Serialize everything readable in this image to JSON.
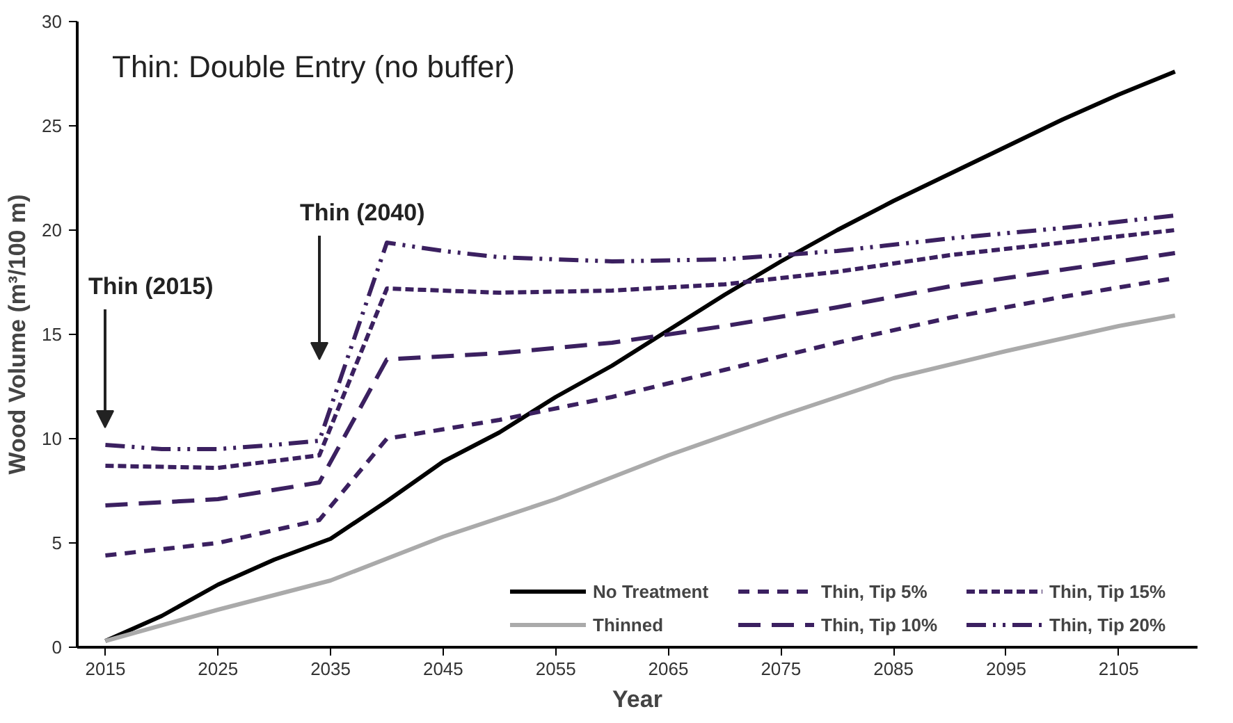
{
  "chart_data": {
    "type": "line",
    "title": "Thin: Double Entry (no buffer)",
    "xlabel": "Year",
    "ylabel": "Wood Volume (m³/100 m)",
    "xlim": [
      2012.5,
      2112
    ],
    "xticks": [
      2015,
      2025,
      2035,
      2045,
      2055,
      2065,
      2075,
      2085,
      2095,
      2105
    ],
    "ylim": [
      0,
      30
    ],
    "yticks": [
      0,
      5,
      10,
      15,
      20,
      25,
      30
    ],
    "grid": false,
    "legend": "bottom right",
    "annotations": [
      "Thin (2015)",
      "Thin (2040)"
    ],
    "series": [
      {
        "name": "No Treatment",
        "color": "#000000",
        "line_style": "solid",
        "x": [
          2015,
          2020,
          2025,
          2030,
          2035,
          2040,
          2045,
          2050,
          2055,
          2060,
          2065,
          2070,
          2075,
          2080,
          2085,
          2090,
          2095,
          2100,
          2105,
          2110
        ],
        "values": [
          0.3,
          1.5,
          3.0,
          4.2,
          5.2,
          7.0,
          8.9,
          10.3,
          12.0,
          13.5,
          15.2,
          16.9,
          18.5,
          20.0,
          21.4,
          22.7,
          24.0,
          25.3,
          26.5,
          27.6
        ]
      },
      {
        "name": "Thinned",
        "color": "#aaaaaa",
        "line_style": "solid",
        "x": [
          2015,
          2025,
          2035,
          2045,
          2055,
          2065,
          2075,
          2085,
          2095,
          2105,
          2110
        ],
        "values": [
          0.3,
          1.8,
          3.2,
          5.3,
          7.1,
          9.2,
          11.1,
          12.9,
          14.2,
          15.4,
          15.9
        ]
      },
      {
        "name": "Thin, Tip 5%",
        "color": "#3b2060",
        "line_style": "dashed",
        "x": [
          2015,
          2025,
          2034,
          2040,
          2050,
          2060,
          2070,
          2080,
          2090,
          2100,
          2110
        ],
        "values": [
          4.4,
          5.0,
          6.1,
          10.0,
          10.9,
          12.0,
          13.3,
          14.6,
          15.8,
          16.8,
          17.7
        ]
      },
      {
        "name": "Thin, Tip 10%",
        "color": "#3b2060",
        "line_style": "dashed",
        "x": [
          2015,
          2025,
          2034,
          2040,
          2050,
          2060,
          2070,
          2080,
          2090,
          2100,
          2110
        ],
        "values": [
          6.8,
          7.1,
          7.9,
          13.8,
          14.1,
          14.6,
          15.4,
          16.3,
          17.3,
          18.1,
          18.9
        ]
      },
      {
        "name": "Thin, Tip 15%",
        "color": "#3b2060",
        "line_style": "dashed",
        "x": [
          2015,
          2025,
          2034,
          2040,
          2050,
          2060,
          2070,
          2080,
          2090,
          2100,
          2110
        ],
        "values": [
          8.7,
          8.6,
          9.2,
          17.2,
          17.0,
          17.1,
          17.4,
          18.0,
          18.8,
          19.4,
          20.0
        ]
      },
      {
        "name": "Thin, Tip 20%",
        "color": "#3b2060",
        "line_style": "dashed",
        "x": [
          2015,
          2020,
          2025,
          2030,
          2034,
          2040,
          2045,
          2050,
          2060,
          2070,
          2080,
          2090,
          2100,
          2110
        ],
        "values": [
          9.7,
          9.5,
          9.5,
          9.7,
          9.9,
          19.4,
          19.0,
          18.7,
          18.5,
          18.6,
          19.0,
          19.6,
          20.1,
          20.7
        ]
      }
    ]
  }
}
